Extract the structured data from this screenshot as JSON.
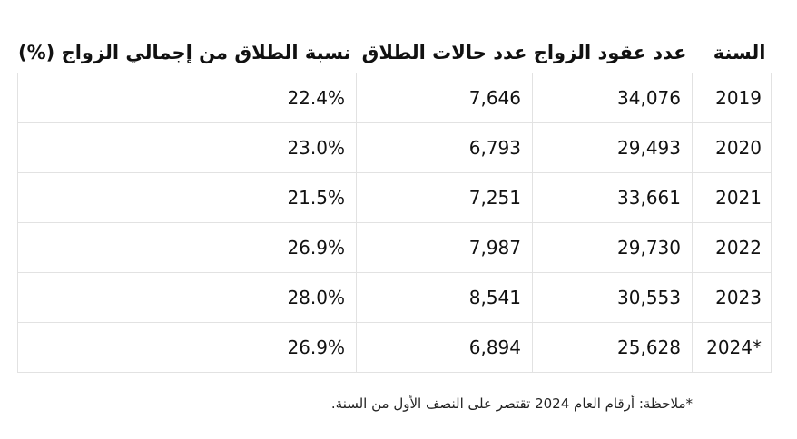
{
  "table": {
    "columns": [
      "السنة",
      "عدد عقود الزواج",
      "عدد حالات الطلاق",
      "نسبة الطلاق من إجمالي الزواج (%)"
    ],
    "rows": [
      [
        "2019",
        "34,076",
        "7,646",
        "22.4%"
      ],
      [
        "2020",
        "29,493",
        "6,793",
        "23.0%"
      ],
      [
        "2021",
        "33,661",
        "7,251",
        "21.5%"
      ],
      [
        "2022",
        "29,730",
        "7,987",
        "26.9%"
      ],
      [
        "2023",
        "30,553",
        "8,541",
        "28.0%"
      ],
      [
        "2024*",
        "25,628",
        "6,894",
        "26.9%"
      ]
    ]
  },
  "footnote": "*ملاحظة: أرقام العام 2024 تقتصر على النصف الأول من السنة."
}
